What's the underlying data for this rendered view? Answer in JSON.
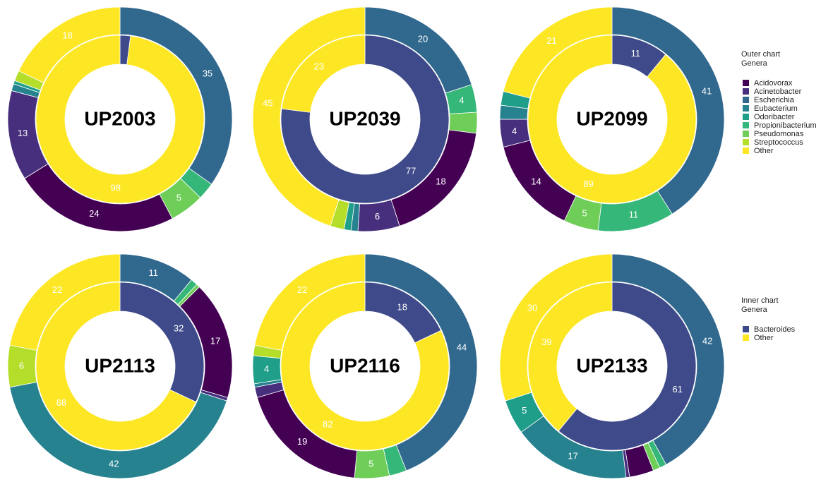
{
  "chart_data": [
    {
      "type": "donut",
      "title": "UP2003",
      "outer": {
        "categories": [
          "Escherichia",
          "Propionibacterium",
          "Pseudomonas",
          "Acidovorax",
          "Acinetobacter",
          "Eubacterium",
          "Odoribacter",
          "Streptococcus",
          "Other"
        ],
        "values": [
          35,
          2.5,
          5,
          24,
          13,
          1,
          0.5,
          1.5,
          18
        ],
        "value_labels": [
          "35",
          null,
          "5",
          "24",
          "13",
          null,
          null,
          null,
          "18"
        ]
      },
      "inner": {
        "categories": [
          "Bacteroides",
          "Other"
        ],
        "values": [
          2,
          98
        ],
        "value_labels": [
          null,
          "98"
        ]
      }
    },
    {
      "type": "donut",
      "title": "UP2039",
      "outer": {
        "categories": [
          "Escherichia",
          "Propionibacterium",
          "Pseudomonas",
          "Acidovorax",
          "Acinetobacter",
          "Eubacterium",
          "Odoribacter",
          "Streptococcus",
          "Other"
        ],
        "values": [
          20,
          4,
          3,
          18,
          6,
          1,
          1,
          2,
          45
        ],
        "value_labels": [
          "20",
          "4",
          null,
          "18",
          "6",
          null,
          null,
          null,
          "45"
        ]
      },
      "inner": {
        "categories": [
          "Bacteroides",
          "Other"
        ],
        "values": [
          77,
          23
        ],
        "value_labels": [
          "77",
          "23"
        ]
      }
    },
    {
      "type": "donut",
      "title": "UP2099",
      "outer": {
        "categories": [
          "Escherichia",
          "Propionibacterium",
          "Pseudomonas",
          "Acidovorax",
          "Acinetobacter",
          "Eubacterium",
          "Odoribacter",
          "Other"
        ],
        "values": [
          41,
          11,
          5,
          14,
          4,
          2,
          2,
          21
        ],
        "value_labels": [
          "41",
          "11",
          "5",
          "14",
          "4",
          null,
          null,
          "21"
        ]
      },
      "inner": {
        "categories": [
          "Bacteroides",
          "Other"
        ],
        "values": [
          11,
          89
        ],
        "value_labels": [
          "11",
          "89"
        ]
      }
    },
    {
      "type": "donut",
      "title": "UP2113",
      "outer": {
        "categories": [
          "Escherichia",
          "Propionibacterium",
          "Pseudomonas",
          "Acidovorax",
          "Acinetobacter",
          "Eubacterium",
          "Streptococcus",
          "Other"
        ],
        "values": [
          11,
          1,
          0.5,
          17,
          0.5,
          42,
          6,
          22
        ],
        "value_labels": [
          "11",
          null,
          null,
          "17",
          null,
          "42",
          "6",
          "22"
        ]
      },
      "inner": {
        "categories": [
          "Bacteroides",
          "Other"
        ],
        "values": [
          32,
          68
        ],
        "value_labels": [
          "32",
          "68"
        ]
      }
    },
    {
      "type": "donut",
      "title": "UP2116",
      "outer": {
        "categories": [
          "Escherichia",
          "Propionibacterium",
          "Pseudomonas",
          "Acidovorax",
          "Acinetobacter",
          "Eubacterium",
          "Odoribacter",
          "Streptococcus",
          "Other"
        ],
        "values": [
          44,
          2.5,
          5,
          19,
          1.5,
          0.5,
          4,
          1.5,
          22
        ],
        "value_labels": [
          "44",
          null,
          "5",
          "19",
          null,
          null,
          "4",
          null,
          "22"
        ]
      },
      "inner": {
        "categories": [
          "Bacteroides",
          "Other"
        ],
        "values": [
          18,
          82
        ],
        "value_labels": [
          "18",
          "82"
        ]
      }
    },
    {
      "type": "donut",
      "title": "UP2133",
      "outer": {
        "categories": [
          "Escherichia",
          "Propionibacterium",
          "Pseudomonas",
          "Acidovorax",
          "Acinetobacter",
          "Eubacterium",
          "Odoribacter",
          "Other"
        ],
        "values": [
          42,
          1,
          1,
          3.5,
          0.5,
          17,
          5,
          30
        ],
        "value_labels": [
          "42",
          null,
          null,
          null,
          null,
          "17",
          "5",
          "30"
        ]
      },
      "inner": {
        "categories": [
          "Bacteroides",
          "Other"
        ],
        "values": [
          61,
          39
        ],
        "value_labels": [
          "61",
          "39"
        ]
      }
    }
  ],
  "legends": [
    {
      "title": [
        "Outer chart",
        "Genera"
      ],
      "categories": [
        "Acidovorax",
        "Acinetobacter",
        "Escherichia",
        "Eubacterium",
        "Odoribacter",
        "Propionibacterium",
        "Pseudomonas",
        "Streptococcus",
        "Other"
      ],
      "colors": [
        "#440154",
        "#472f7d",
        "#31688e",
        "#26828e",
        "#1f9e89",
        "#35b779",
        "#6ece58",
        "#b5de2b",
        "#fde725"
      ]
    },
    {
      "title": [
        "Inner chart",
        "Genera"
      ],
      "categories": [
        "Bacteroides",
        "Other"
      ],
      "colors": [
        "#3e4a89",
        "#fde725"
      ]
    }
  ]
}
